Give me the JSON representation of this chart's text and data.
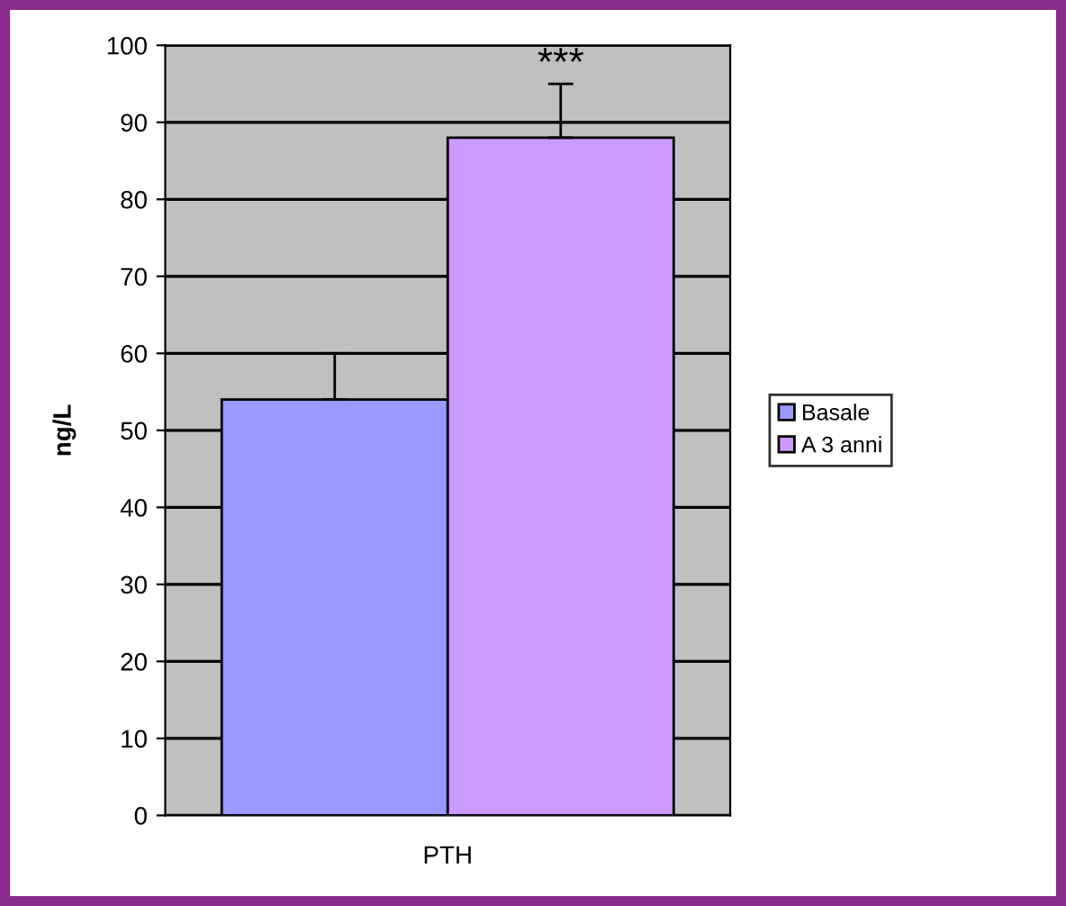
{
  "chart_data": {
    "type": "bar",
    "ylabel": "ng/L",
    "categories": [
      "PTH"
    ],
    "series": [
      {
        "name": "Basale",
        "color": "#9999ff",
        "values": [
          54
        ],
        "errors": [
          [
            54,
            60
          ]
        ]
      },
      {
        "name": "A 3 anni",
        "color": "#cc99ff",
        "values": [
          88
        ],
        "errors": [
          [
            88,
            95
          ]
        ]
      }
    ],
    "annotations": [
      "***"
    ],
    "ylim": [
      0,
      100
    ],
    "yticks": [
      0,
      10,
      20,
      30,
      40,
      50,
      60,
      70,
      80,
      90,
      100
    ],
    "grid": "y",
    "legend": "right"
  }
}
